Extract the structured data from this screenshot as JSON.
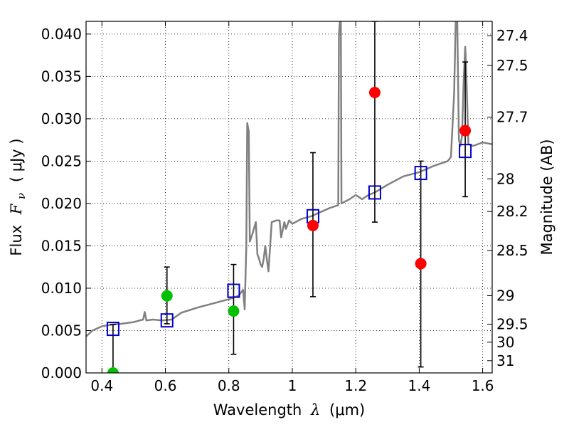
{
  "chart_data": {
    "type": "scatter",
    "xlabel": {
      "prefix": "Wavelength",
      "symbol": "λ",
      "unit": "(μm)"
    },
    "ylabel": {
      "prefix": "Flux",
      "symbol": "F",
      "subscript": "ν",
      "unit": "( μJy )"
    },
    "y2label": "Magnitude (AB)",
    "xlim": [
      0.35,
      1.63
    ],
    "ylim": [
      0.0,
      0.0415
    ],
    "grid": true,
    "x_ticks": [
      {
        "value": 0.4,
        "label": "0.4"
      },
      {
        "value": 0.6,
        "label": "0.6"
      },
      {
        "value": 0.8,
        "label": "0.8"
      },
      {
        "value": 1.0,
        "label": "1"
      },
      {
        "value": 1.2,
        "label": "1.2"
      },
      {
        "value": 1.4,
        "label": "1.4"
      },
      {
        "value": 1.6,
        "label": "1.6"
      }
    ],
    "y_ticks": [
      {
        "value": 0.0,
        "label": "0.000"
      },
      {
        "value": 0.005,
        "label": "0.005"
      },
      {
        "value": 0.01,
        "label": "0.010"
      },
      {
        "value": 0.015,
        "label": "0.015"
      },
      {
        "value": 0.02,
        "label": "0.020"
      },
      {
        "value": 0.025,
        "label": "0.025"
      },
      {
        "value": 0.03,
        "label": "0.030"
      },
      {
        "value": 0.035,
        "label": "0.035"
      },
      {
        "value": 0.04,
        "label": "0.040"
      }
    ],
    "y2_ticks": [
      "27.4",
      "27.5",
      "27.7",
      "28",
      "28.2",
      "28.5",
      "29",
      "29.5",
      "30",
      "31"
    ],
    "model_color": "#808080",
    "model_spectrum": [
      [
        0.35,
        0.0043
      ],
      [
        0.37,
        0.005
      ],
      [
        0.4,
        0.0055
      ],
      [
        0.43,
        0.0057
      ],
      [
        0.46,
        0.0058
      ],
      [
        0.5,
        0.006
      ],
      [
        0.53,
        0.0063
      ],
      [
        0.535,
        0.0072
      ],
      [
        0.54,
        0.0062
      ],
      [
        0.56,
        0.0063
      ],
      [
        0.59,
        0.0062
      ],
      [
        0.62,
        0.0063
      ],
      [
        0.65,
        0.0071
      ],
      [
        0.7,
        0.0077
      ],
      [
        0.75,
        0.0082
      ],
      [
        0.8,
        0.0087
      ],
      [
        0.83,
        0.0091
      ],
      [
        0.845,
        0.0098
      ],
      [
        0.85,
        0.0075
      ],
      [
        0.855,
        0.015
      ],
      [
        0.858,
        0.0295
      ],
      [
        0.863,
        0.0285
      ],
      [
        0.866,
        0.0155
      ],
      [
        0.875,
        0.0165
      ],
      [
        0.885,
        0.0178
      ],
      [
        0.89,
        0.014
      ],
      [
        0.895,
        0.0135
      ],
      [
        0.9,
        0.0128
      ],
      [
        0.905,
        0.0125
      ],
      [
        0.91,
        0.0135
      ],
      [
        0.915,
        0.015
      ],
      [
        0.92,
        0.0133
      ],
      [
        0.925,
        0.012
      ],
      [
        0.935,
        0.0178
      ],
      [
        0.95,
        0.018
      ],
      [
        0.96,
        0.018
      ],
      [
        0.965,
        0.016
      ],
      [
        0.975,
        0.0178
      ],
      [
        0.98,
        0.017
      ],
      [
        0.99,
        0.018
      ],
      [
        1.0,
        0.0176
      ],
      [
        1.03,
        0.0182
      ],
      [
        1.06,
        0.0185
      ],
      [
        1.09,
        0.019
      ],
      [
        1.12,
        0.0195
      ],
      [
        1.145,
        0.0198
      ],
      [
        1.147,
        0.04
      ],
      [
        1.15,
        0.0415
      ],
      [
        1.153,
        0.0415
      ],
      [
        1.155,
        0.02
      ],
      [
        1.18,
        0.0205
      ],
      [
        1.2,
        0.021
      ],
      [
        1.22,
        0.0205
      ],
      [
        1.24,
        0.021
      ],
      [
        1.26,
        0.0213
      ],
      [
        1.3,
        0.0222
      ],
      [
        1.35,
        0.0232
      ],
      [
        1.4,
        0.0237
      ],
      [
        1.45,
        0.0245
      ],
      [
        1.49,
        0.025
      ],
      [
        1.5,
        0.0255
      ],
      [
        1.51,
        0.033
      ],
      [
        1.515,
        0.0415
      ],
      [
        1.52,
        0.0415
      ],
      [
        1.525,
        0.0275
      ],
      [
        1.53,
        0.0268
      ],
      [
        1.535,
        0.028
      ],
      [
        1.54,
        0.0345
      ],
      [
        1.545,
        0.0385
      ],
      [
        1.548,
        0.036
      ],
      [
        1.555,
        0.027
      ],
      [
        1.57,
        0.0268
      ],
      [
        1.6,
        0.0272
      ],
      [
        1.63,
        0.027
      ]
    ],
    "series": [
      {
        "marker": "square-open",
        "color": "#0000cc",
        "points": [
          {
            "x": 0.435,
            "y": 0.0052,
            "yerr": [
              0.0,
              0.0057
            ]
          },
          {
            "x": 0.605,
            "y": 0.0062,
            "yerr": [
              0.0058,
              0.0125
            ]
          },
          {
            "x": 0.815,
            "y": 0.0097,
            "yerr": [
              0.0022,
              0.0128
            ]
          },
          {
            "x": 1.065,
            "y": 0.0185,
            "yerr": [
              0.009,
              0.026
            ]
          },
          {
            "x": 1.26,
            "y": 0.0213,
            "yerr": [
              0.0178,
              0.0415
            ]
          },
          {
            "x": 1.405,
            "y": 0.0236,
            "yerr": [
              0.0007,
              0.025
            ]
          },
          {
            "x": 1.545,
            "y": 0.0262,
            "yerr": [
              0.0208,
              0.0367
            ]
          }
        ]
      },
      {
        "marker": "circle-filled",
        "color": "#00c000",
        "points": [
          {
            "x": 0.435,
            "y": 0.0
          },
          {
            "x": 0.605,
            "y": 0.0091
          },
          {
            "x": 0.815,
            "y": 0.0073
          }
        ]
      },
      {
        "marker": "circle-filled",
        "color": "#ff0000",
        "points": [
          {
            "x": 1.065,
            "y": 0.0174
          },
          {
            "x": 1.26,
            "y": 0.0331
          },
          {
            "x": 1.405,
            "y": 0.0129
          },
          {
            "x": 1.545,
            "y": 0.0286
          }
        ]
      }
    ]
  }
}
